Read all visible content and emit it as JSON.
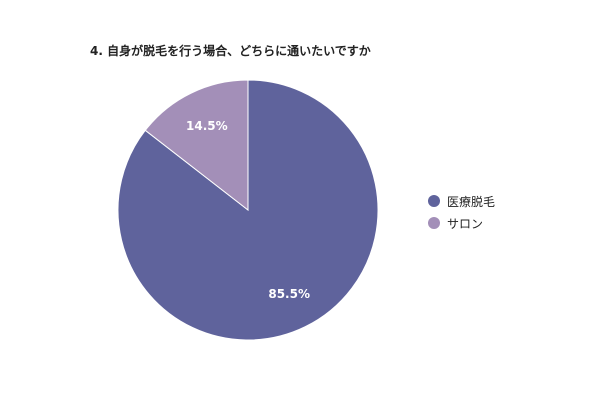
{
  "chart_data": {
    "type": "pie",
    "title": "4. 自身が脱毛を行う場合、どちらに通いたいですか",
    "categories": [
      "医療脱毛",
      "サロン"
    ],
    "values": [
      85.5,
      14.5
    ],
    "value_labels": [
      "85.5%",
      "14.5%"
    ],
    "colors": [
      "#5f639c",
      "#a38fb8"
    ],
    "legend_position": "right",
    "start_angle": "12-o'clock",
    "direction": "clockwise"
  }
}
